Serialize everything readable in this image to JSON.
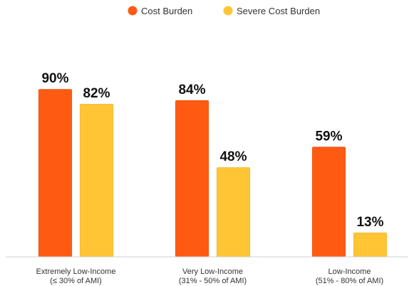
{
  "chart_data": {
    "type": "bar",
    "categories": [
      [
        "Extremely Low-Income",
        "(≤ 30% of AMI)"
      ],
      [
        "Very Low-Income",
        "(31% - 50% of AMI)"
      ],
      [
        "Low-Income",
        "(51% - 80% of AMI)"
      ]
    ],
    "series": [
      {
        "name": "Cost Burden",
        "color": "#FF5A12",
        "values": [
          90,
          84,
          59
        ],
        "labels": [
          "90%",
          "84%",
          "59%"
        ]
      },
      {
        "name": "Severe Cost Burden",
        "color": "#FFC534",
        "values": [
          82,
          48,
          13
        ],
        "labels": [
          "82%",
          "48%",
          "13%"
        ]
      }
    ],
    "ylim": [
      0,
      100
    ],
    "grid": false,
    "legend": "top-center",
    "xlabel": "",
    "ylabel": ""
  }
}
